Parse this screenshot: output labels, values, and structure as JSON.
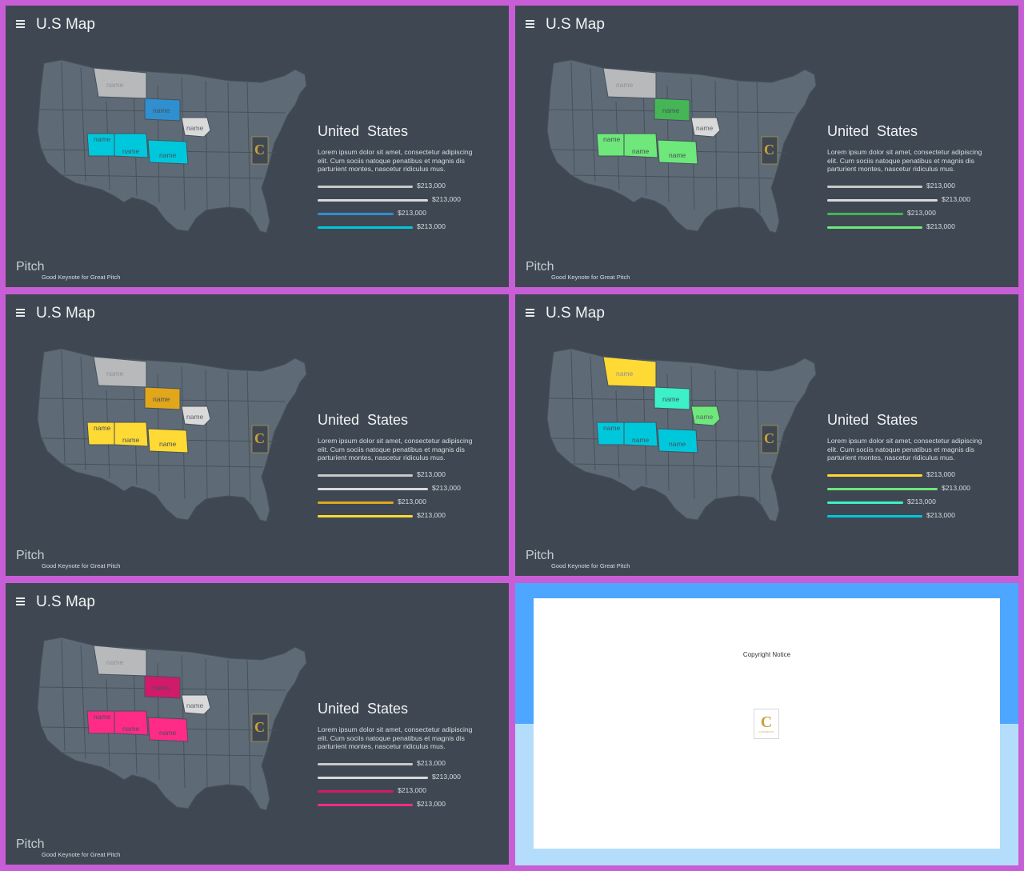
{
  "slides": [
    {
      "title": "U.S Map",
      "heading": "United  States",
      "description": "Lorem ipsum dolor sit amet, consectetur adipiscing elit. Cum sociis natoque penatibus et magnis dis parturient montes, nascetur ridiculus mus.",
      "state_label": "name",
      "pitch": "Pitch",
      "footer": "Good Keynote for Great Pitch",
      "colors": {
        "montana": "#b7b9bb",
        "dakota": "#2f8fcf",
        "iowa": "#d9d9d9",
        "row": "#00c8dc"
      },
      "bars": [
        {
          "value": "$213,000",
          "fill": 0.79,
          "color": "#c9c9c9"
        },
        {
          "value": "$213,000",
          "fill": 0.92,
          "color": "#d9d9d9"
        },
        {
          "value": "$213,000",
          "fill": 0.63,
          "color": "#2f8fcf"
        },
        {
          "value": "$213,000",
          "fill": 0.79,
          "color": "#00c8dc"
        }
      ]
    },
    {
      "title": "U.S Map",
      "heading": "United  States",
      "description": "Lorem ipsum dolor sit amet, consectetur adipiscing elit. Cum sociis natoque penatibus et magnis dis parturient montes, nascetur ridiculus mus.",
      "state_label": "name",
      "pitch": "Pitch",
      "footer": "Good Keynote for Great Pitch",
      "colors": {
        "montana": "#b7b9bb",
        "dakota": "#45b556",
        "iowa": "#d9d9d9",
        "row": "#6ee87a"
      },
      "bars": [
        {
          "value": "$213,000",
          "fill": 0.79,
          "color": "#c9c9c9"
        },
        {
          "value": "$213,000",
          "fill": 0.92,
          "color": "#d9d9d9"
        },
        {
          "value": "$213,000",
          "fill": 0.63,
          "color": "#45b556"
        },
        {
          "value": "$213,000",
          "fill": 0.79,
          "color": "#6ee87a"
        }
      ]
    },
    {
      "title": "U.S Map",
      "heading": "United  States",
      "description": "Lorem ipsum dolor sit amet, consectetur adipiscing elit. Cum sociis natoque penatibus et magnis dis parturient montes, nascetur ridiculus mus.",
      "state_label": "name",
      "pitch": "Pitch",
      "footer": "Good Keynote for Great Pitch",
      "colors": {
        "montana": "#b7b9bb",
        "dakota": "#e1a61a",
        "iowa": "#d9d9d9",
        "row": "#ffd934"
      },
      "bars": [
        {
          "value": "$213,000",
          "fill": 0.79,
          "color": "#c9c9c9"
        },
        {
          "value": "$213,000",
          "fill": 0.92,
          "color": "#d9d9d9"
        },
        {
          "value": "$213,000",
          "fill": 0.63,
          "color": "#e1a61a"
        },
        {
          "value": "$213,000",
          "fill": 0.79,
          "color": "#ffd934"
        }
      ]
    },
    {
      "title": "U.S Map",
      "heading": "United  States",
      "description": "Lorem ipsum dolor sit amet, consectetur adipiscing elit. Cum sociis natoque penatibus et magnis dis parturient montes, nascetur ridiculus mus.",
      "state_label": "name",
      "pitch": "Pitch",
      "footer": "Good Keynote for Great Pitch",
      "colors": {
        "montana": "#ffd934",
        "dakota": "#3cf0c8",
        "iowa": "#6ee87a",
        "row": "#00c8dc"
      },
      "bars": [
        {
          "value": "$213,000",
          "fill": 0.79,
          "color": "#ffd934"
        },
        {
          "value": "$213,000",
          "fill": 0.92,
          "color": "#6ee87a"
        },
        {
          "value": "$213,000",
          "fill": 0.63,
          "color": "#3cf0c8"
        },
        {
          "value": "$213,000",
          "fill": 0.79,
          "color": "#00c8dc"
        }
      ]
    },
    {
      "title": "U.S Map",
      "heading": "United  States",
      "description": "Lorem ipsum dolor sit amet, consectetur adipiscing elit. Cum sociis natoque penatibus et magnis dis parturient montes, nascetur ridiculus mus.",
      "state_label": "name",
      "pitch": "Pitch",
      "footer": "Good Keynote for Great Pitch",
      "colors": {
        "montana": "#b7b9bb",
        "dakota": "#d21a6a",
        "iowa": "#d9d9d9",
        "row": "#ff2b86"
      },
      "bars": [
        {
          "value": "$213,000",
          "fill": 0.79,
          "color": "#c9c9c9"
        },
        {
          "value": "$213,000",
          "fill": 0.92,
          "color": "#d9d9d9"
        },
        {
          "value": "$213,000",
          "fill": 0.63,
          "color": "#d21a6a"
        },
        {
          "value": "$213,000",
          "fill": 0.79,
          "color": "#ff2b86"
        }
      ]
    }
  ],
  "copyright": {
    "text": "Copyright Notice",
    "logo_letter": "C",
    "logo_text": "CONTENTS"
  }
}
